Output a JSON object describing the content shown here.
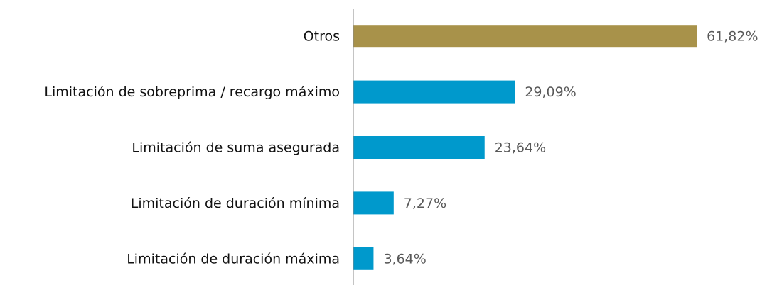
{
  "chart_data": {
    "type": "bar",
    "orientation": "horizontal",
    "categories": [
      "Otros",
      "Limitación de sobreprima / recargo máximo",
      "Limitación de suma asegurada",
      "Limitación de duración mínima",
      "Limitación de duración máxima"
    ],
    "values": [
      61.82,
      29.09,
      23.64,
      7.27,
      3.64
    ],
    "value_labels": [
      "61,82%",
      "29,09%",
      "23,64%",
      "7,27%",
      "3,64%"
    ],
    "colors": [
      "#a8924a",
      "#0099cc",
      "#0099cc",
      "#0099cc",
      "#0099cc"
    ],
    "xlim": [
      0,
      70
    ]
  }
}
